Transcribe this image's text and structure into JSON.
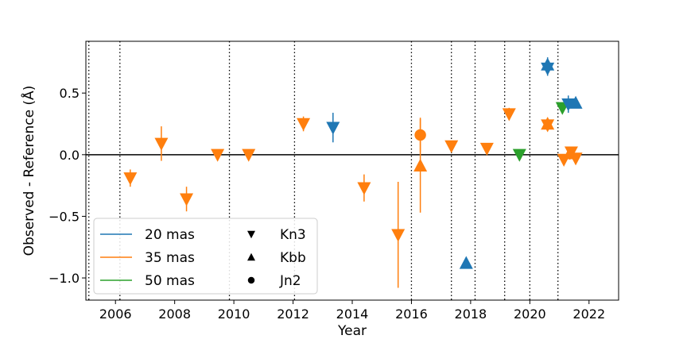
{
  "chart_data": {
    "type": "scatter",
    "title": "",
    "xlabel": "Year",
    "ylabel": "Observed - Reference (Å)",
    "xlim": [
      2005.0,
      2023.0
    ],
    "ylim": [
      -1.18,
      0.92
    ],
    "xticks": [
      2006,
      2008,
      2010,
      2012,
      2014,
      2016,
      2018,
      2020,
      2022
    ],
    "xtick_labels": [
      "2006",
      "2008",
      "2010",
      "2012",
      "2014",
      "2016",
      "2018",
      "2020",
      "2022"
    ],
    "yticks": [
      -1.0,
      -0.5,
      0.0,
      0.5
    ],
    "ytick_labels": [
      "−1.0",
      "−0.5",
      "0.0",
      "0.5"
    ],
    "grid": false,
    "reference_line_y": 0.0,
    "vertical_dotted_lines_x": [
      2005.1,
      2006.15,
      2009.85,
      2012.05,
      2016.0,
      2017.35,
      2018.15,
      2019.15,
      2020.0,
      2020.95
    ],
    "colors": {
      "20 mas": "#1f77b4",
      "35 mas": "#ff7f0e",
      "50 mas": "#2ca02c"
    },
    "legend_placement": "lower-left",
    "legend": {
      "colors": [
        {
          "label": "20 mas",
          "color": "#1f77b4"
        },
        {
          "label": "35 mas",
          "color": "#ff7f0e"
        },
        {
          "label": "50 mas",
          "color": "#2ca02c"
        }
      ],
      "markers": [
        {
          "label": "Kn3",
          "marker": "triangle-down"
        },
        {
          "label": "Kbb",
          "marker": "triangle-up"
        },
        {
          "label": "Jn2",
          "marker": "circle"
        }
      ]
    },
    "points": [
      {
        "x": 2006.5,
        "y": -0.19,
        "err": 0.07,
        "scale": "35 mas",
        "filter": "Kn3"
      },
      {
        "x": 2007.55,
        "y": 0.09,
        "err": 0.14,
        "scale": "35 mas",
        "filter": "Kn3"
      },
      {
        "x": 2008.4,
        "y": -0.36,
        "err": 0.1,
        "scale": "35 mas",
        "filter": "Kn3"
      },
      {
        "x": 2009.45,
        "y": 0.0,
        "err": 0.04,
        "scale": "35 mas",
        "filter": "Kn3"
      },
      {
        "x": 2010.5,
        "y": 0.0,
        "err": 0.04,
        "scale": "35 mas",
        "filter": "Kn3"
      },
      {
        "x": 2012.35,
        "y": 0.25,
        "err": 0.06,
        "scale": "35 mas",
        "filter": "Kn3"
      },
      {
        "x": 2013.35,
        "y": 0.22,
        "err": 0.12,
        "scale": "20 mas",
        "filter": "Kn3"
      },
      {
        "x": 2014.4,
        "y": -0.27,
        "err": 0.11,
        "scale": "35 mas",
        "filter": "Kn3"
      },
      {
        "x": 2015.55,
        "y": -0.65,
        "err": 0.43,
        "scale": "35 mas",
        "filter": "Kn3"
      },
      {
        "x": 2016.3,
        "y": 0.16,
        "err": 0.14,
        "scale": "35 mas",
        "filter": "Jn2"
      },
      {
        "x": 2016.3,
        "y": -0.09,
        "err": 0.38,
        "scale": "35 mas",
        "filter": "Kbb"
      },
      {
        "x": 2017.35,
        "y": 0.07,
        "err": 0.04,
        "scale": "35 mas",
        "filter": "Kn3"
      },
      {
        "x": 2017.85,
        "y": -0.88,
        "err": 0.0,
        "scale": "20 mas",
        "filter": "Kbb"
      },
      {
        "x": 2018.55,
        "y": 0.05,
        "err": 0.03,
        "scale": "35 mas",
        "filter": "Kn3"
      },
      {
        "x": 2019.3,
        "y": 0.33,
        "err": 0.05,
        "scale": "35 mas",
        "filter": "Kn3"
      },
      {
        "x": 2019.65,
        "y": 0.0,
        "err": 0.03,
        "scale": "50 mas",
        "filter": "Kn3"
      },
      {
        "x": 2020.6,
        "y": 0.24,
        "err": 0.05,
        "scale": "35 mas",
        "filter": "Kn3"
      },
      {
        "x": 2020.6,
        "y": 0.25,
        "err": 0.05,
        "scale": "35 mas",
        "filter": "Kbb"
      },
      {
        "x": 2020.6,
        "y": 0.7,
        "err": 0.06,
        "scale": "20 mas",
        "filter": "Kn3"
      },
      {
        "x": 2020.6,
        "y": 0.73,
        "err": 0.06,
        "scale": "20 mas",
        "filter": "Kbb"
      },
      {
        "x": 2021.1,
        "y": 0.38,
        "err": 0.04,
        "scale": "50 mas",
        "filter": "Kn3"
      },
      {
        "x": 2021.15,
        "y": -0.04,
        "err": 0.04,
        "scale": "35 mas",
        "filter": "Kn3"
      },
      {
        "x": 2021.3,
        "y": 0.41,
        "err": 0.07,
        "scale": "20 mas",
        "filter": "Kn3"
      },
      {
        "x": 2021.35,
        "y": 0.01,
        "err": 0.05,
        "scale": "35 mas",
        "filter": "Kbb"
      },
      {
        "x": 2021.4,
        "y": 0.02,
        "err": 0.04,
        "scale": "35 mas",
        "filter": "Kn3"
      },
      {
        "x": 2021.55,
        "y": 0.42,
        "err": 0.04,
        "scale": "20 mas",
        "filter": "Kbb"
      },
      {
        "x": 2021.55,
        "y": -0.03,
        "err": 0.04,
        "scale": "35 mas",
        "filter": "Kn3"
      }
    ]
  }
}
